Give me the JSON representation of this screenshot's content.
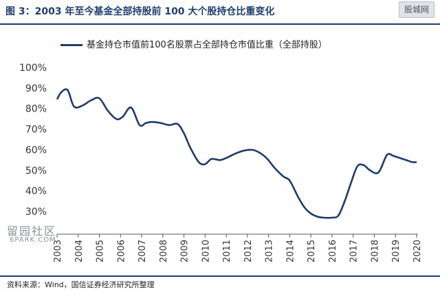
{
  "header": {
    "title": "图 3：2003 年至今基金全部持股前 100 大个股持仓比重变化",
    "watermark": "股城网"
  },
  "footer": {
    "source": "资料来源：Wind，国信证券经济研究所整理"
  },
  "watermarks": {
    "left_main": "留园社区",
    "left_sub": "6PARK.COM"
  },
  "colors": {
    "series": "#1f3b66",
    "accent": "#1f3f6e"
  },
  "chart_data": {
    "type": "line",
    "title": "",
    "xlabel": "",
    "ylabel": "",
    "legend_position": "top",
    "grid": false,
    "y_unit": "%",
    "ylim": [
      25,
      100
    ],
    "yticks": [
      30,
      40,
      50,
      60,
      70,
      80,
      90,
      100
    ],
    "ytick_labels": [
      "30%",
      "40%",
      "50%",
      "60%",
      "70%",
      "80%",
      "90%",
      "100%"
    ],
    "xlim": [
      2003,
      2020
    ],
    "xticks": [
      2003,
      2004,
      2005,
      2006,
      2007,
      2008,
      2009,
      2010,
      2011,
      2012,
      2013,
      2014,
      2015,
      2016,
      2017,
      2018,
      2019,
      2020
    ],
    "xtick_labels": [
      "2003",
      "2004",
      "2005",
      "2006",
      "2007",
      "2008",
      "2009",
      "2010",
      "2011",
      "2012",
      "2013",
      "2014",
      "2015",
      "2016",
      "2017",
      "2018",
      "2019",
      "2020"
    ],
    "series": [
      {
        "name": "基金持仓市值前100名股票占全部持仓市值比重（全部持股）",
        "x": [
          2003.0,
          2003.2,
          2003.5,
          2003.8,
          2004.2,
          2004.6,
          2005.0,
          2005.4,
          2005.8,
          2006.1,
          2006.5,
          2006.9,
          2007.2,
          2007.5,
          2007.9,
          2008.3,
          2008.7,
          2009.0,
          2009.3,
          2009.7,
          2010.0,
          2010.3,
          2010.7,
          2011.0,
          2011.4,
          2011.8,
          2012.2,
          2012.5,
          2012.9,
          2013.3,
          2013.7,
          2014.0,
          2014.4,
          2014.7,
          2015.0,
          2015.3,
          2015.6,
          2016.0,
          2016.3,
          2016.6,
          2016.9,
          2017.2,
          2017.5,
          2017.8,
          2018.2,
          2018.6,
          2018.9,
          2019.2,
          2019.5,
          2019.8,
          2020.0
        ],
        "y": [
          84.5,
          88,
          89,
          81,
          81.5,
          84,
          85,
          79,
          75,
          76,
          80.5,
          72,
          73,
          73.5,
          73,
          72,
          72.5,
          68,
          61,
          54,
          53,
          55.5,
          55,
          56,
          58,
          59.5,
          60,
          59,
          56,
          51,
          47,
          45,
          37,
          32,
          29,
          27.5,
          27,
          27,
          28,
          35,
          44,
          52,
          52.5,
          50,
          49,
          57.5,
          57,
          56,
          55,
          54,
          54
        ]
      }
    ]
  }
}
